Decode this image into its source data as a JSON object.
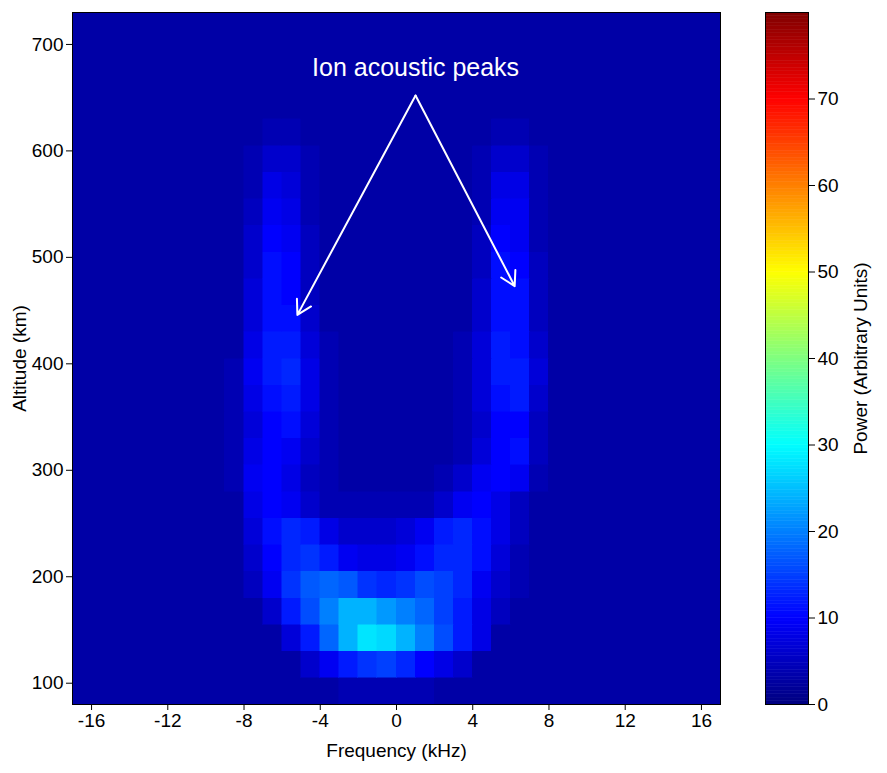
{
  "chart_data": {
    "type": "heatmap",
    "annotation": "Ion acoustic peaks",
    "x_label": "Frequency (kHz)",
    "y_label": "Altitude (km)",
    "xlim": [
      -17,
      17
    ],
    "xticks": [
      -16,
      -12,
      -8,
      -4,
      0,
      4,
      8,
      12,
      16
    ],
    "ylim": [
      80,
      730
    ],
    "yticks": [
      100,
      200,
      300,
      400,
      500,
      600,
      700
    ],
    "x_edges": [
      -17,
      -14,
      -11,
      -10,
      -9,
      -8,
      -7,
      -6,
      -5,
      -4,
      -3,
      -2,
      -1,
      0,
      1,
      2,
      3,
      4,
      5,
      6,
      7,
      8,
      9,
      10,
      11,
      14,
      17
    ],
    "y_edges": [
      80,
      105,
      130,
      155,
      180,
      205,
      230,
      255,
      280,
      305,
      330,
      355,
      380,
      405,
      430,
      455,
      480,
      505,
      530,
      555,
      580,
      605,
      630,
      655,
      680,
      705,
      730
    ],
    "power": [
      [
        3,
        3,
        3,
        3,
        3,
        3,
        3,
        3,
        3,
        3,
        4,
        4,
        4,
        4,
        4,
        3,
        3,
        3,
        3,
        3,
        3,
        3,
        3,
        3,
        3,
        3
      ],
      [
        3,
        3,
        3,
        3,
        3,
        3,
        3,
        3,
        6,
        9,
        12,
        14,
        15,
        13,
        10,
        8,
        6,
        3,
        3,
        3,
        3,
        3,
        3,
        3,
        3,
        3
      ],
      [
        3,
        3,
        3,
        3,
        3,
        3,
        3,
        7,
        12,
        18,
        24,
        28,
        27,
        24,
        20,
        16,
        12,
        8,
        3,
        3,
        3,
        3,
        3,
        3,
        3,
        3
      ],
      [
        3,
        3,
        3,
        3,
        3,
        3,
        6,
        12,
        16,
        20,
        24,
        24,
        22,
        20,
        18,
        15,
        12,
        8,
        5,
        3,
        3,
        3,
        3,
        3,
        3,
        3
      ],
      [
        3,
        3,
        3,
        3,
        3,
        5,
        9,
        14,
        17,
        18,
        17,
        14,
        13,
        14,
        16,
        15,
        13,
        9,
        6,
        4,
        3,
        3,
        3,
        3,
        3,
        3
      ],
      [
        3,
        3,
        3,
        3,
        3,
        6,
        10,
        13,
        14,
        12,
        9,
        8,
        8,
        9,
        11,
        13,
        13,
        11,
        7,
        4,
        3,
        3,
        3,
        3,
        3,
        3
      ],
      [
        3,
        3,
        3,
        3,
        3,
        7,
        11,
        13,
        12,
        8,
        6,
        6,
        6,
        7,
        9,
        12,
        13,
        11,
        8,
        5,
        3,
        3,
        3,
        3,
        3,
        3
      ],
      [
        3,
        3,
        3,
        3,
        3,
        8,
        10,
        9,
        6,
        4,
        4,
        4,
        4,
        4,
        4,
        6,
        9,
        10,
        8,
        5,
        3,
        3,
        3,
        3,
        3,
        3
      ],
      [
        3,
        3,
        3,
        3,
        4,
        9,
        10,
        8,
        5,
        4,
        3,
        3,
        3,
        3,
        3,
        4,
        6,
        9,
        10,
        9,
        4,
        3,
        3,
        3,
        3,
        3
      ],
      [
        3,
        3,
        3,
        3,
        4,
        8,
        10,
        9,
        6,
        4,
        3,
        3,
        3,
        3,
        3,
        3,
        4,
        7,
        10,
        11,
        5,
        3,
        3,
        3,
        3,
        3
      ],
      [
        3,
        3,
        3,
        3,
        4,
        7,
        10,
        11,
        7,
        4,
        3,
        3,
        3,
        3,
        3,
        3,
        4,
        6,
        10,
        10,
        5,
        3,
        3,
        3,
        3,
        3
      ],
      [
        3,
        3,
        3,
        3,
        4,
        8,
        11,
        12,
        8,
        4,
        3,
        3,
        3,
        3,
        3,
        3,
        4,
        7,
        11,
        12,
        6,
        3,
        3,
        3,
        3,
        3
      ],
      [
        3,
        3,
        3,
        3,
        4,
        9,
        12,
        13,
        8,
        4,
        3,
        3,
        3,
        3,
        3,
        3,
        4,
        7,
        12,
        12,
        7,
        3,
        3,
        3,
        3,
        3
      ],
      [
        3,
        3,
        3,
        3,
        3,
        8,
        12,
        12,
        7,
        4,
        3,
        3,
        3,
        3,
        3,
        3,
        4,
        7,
        12,
        11,
        6,
        3,
        3,
        3,
        3,
        3
      ],
      [
        3,
        3,
        3,
        3,
        3,
        7,
        11,
        11,
        6,
        3,
        3,
        3,
        3,
        3,
        3,
        3,
        3,
        6,
        11,
        11,
        5,
        3,
        3,
        3,
        3,
        3
      ],
      [
        3,
        3,
        3,
        3,
        3,
        7,
        11,
        10,
        5,
        3,
        3,
        3,
        3,
        3,
        3,
        3,
        3,
        6,
        11,
        11,
        5,
        3,
        3,
        3,
        3,
        3
      ],
      [
        3,
        3,
        3,
        3,
        3,
        6,
        11,
        10,
        5,
        3,
        3,
        3,
        3,
        3,
        3,
        3,
        3,
        5,
        11,
        10,
        5,
        3,
        3,
        3,
        3,
        3
      ],
      [
        3,
        3,
        3,
        3,
        3,
        6,
        10,
        9,
        5,
        3,
        3,
        3,
        3,
        3,
        3,
        3,
        3,
        5,
        10,
        9,
        4,
        3,
        3,
        3,
        3,
        3
      ],
      [
        3,
        3,
        3,
        3,
        3,
        5,
        9,
        8,
        4,
        3,
        3,
        3,
        3,
        3,
        3,
        3,
        3,
        4,
        9,
        9,
        4,
        3,
        3,
        3,
        3,
        3
      ],
      [
        3,
        3,
        3,
        3,
        3,
        4,
        8,
        7,
        4,
        3,
        3,
        3,
        3,
        3,
        3,
        3,
        3,
        4,
        8,
        8,
        4,
        3,
        3,
        3,
        3,
        3
      ],
      [
        3,
        3,
        3,
        3,
        3,
        4,
        6,
        6,
        4,
        3,
        3,
        3,
        3,
        3,
        3,
        3,
        3,
        4,
        6,
        6,
        4,
        3,
        3,
        3,
        3,
        3
      ],
      [
        3,
        3,
        3,
        3,
        3,
        3,
        4,
        4,
        3,
        3,
        3,
        3,
        3,
        3,
        3,
        3,
        3,
        3,
        4,
        4,
        3,
        3,
        3,
        3,
        3,
        3
      ],
      [
        3,
        3,
        3,
        3,
        3,
        3,
        3,
        3,
        3,
        3,
        3,
        3,
        3,
        3,
        3,
        3,
        3,
        3,
        3,
        3,
        3,
        3,
        3,
        3,
        3,
        3
      ],
      [
        3,
        3,
        3,
        3,
        3,
        3,
        3,
        3,
        3,
        3,
        3,
        3,
        3,
        3,
        3,
        3,
        3,
        3,
        3,
        3,
        3,
        3,
        3,
        3,
        3,
        3
      ],
      [
        3,
        3,
        3,
        3,
        3,
        3,
        3,
        3,
        3,
        3,
        3,
        3,
        3,
        3,
        3,
        3,
        3,
        3,
        3,
        3,
        3,
        3,
        3,
        3,
        3,
        3
      ],
      [
        3,
        3,
        3,
        3,
        3,
        3,
        3,
        3,
        3,
        3,
        3,
        3,
        3,
        3,
        3,
        3,
        3,
        3,
        3,
        3,
        3,
        3,
        3,
        3,
        3,
        3
      ]
    ],
    "colorbar": {
      "label": "Power (Arbitrary Units)",
      "range": [
        0,
        80
      ],
      "ticks": [
        0,
        10,
        20,
        30,
        40,
        50,
        60,
        70
      ]
    }
  }
}
